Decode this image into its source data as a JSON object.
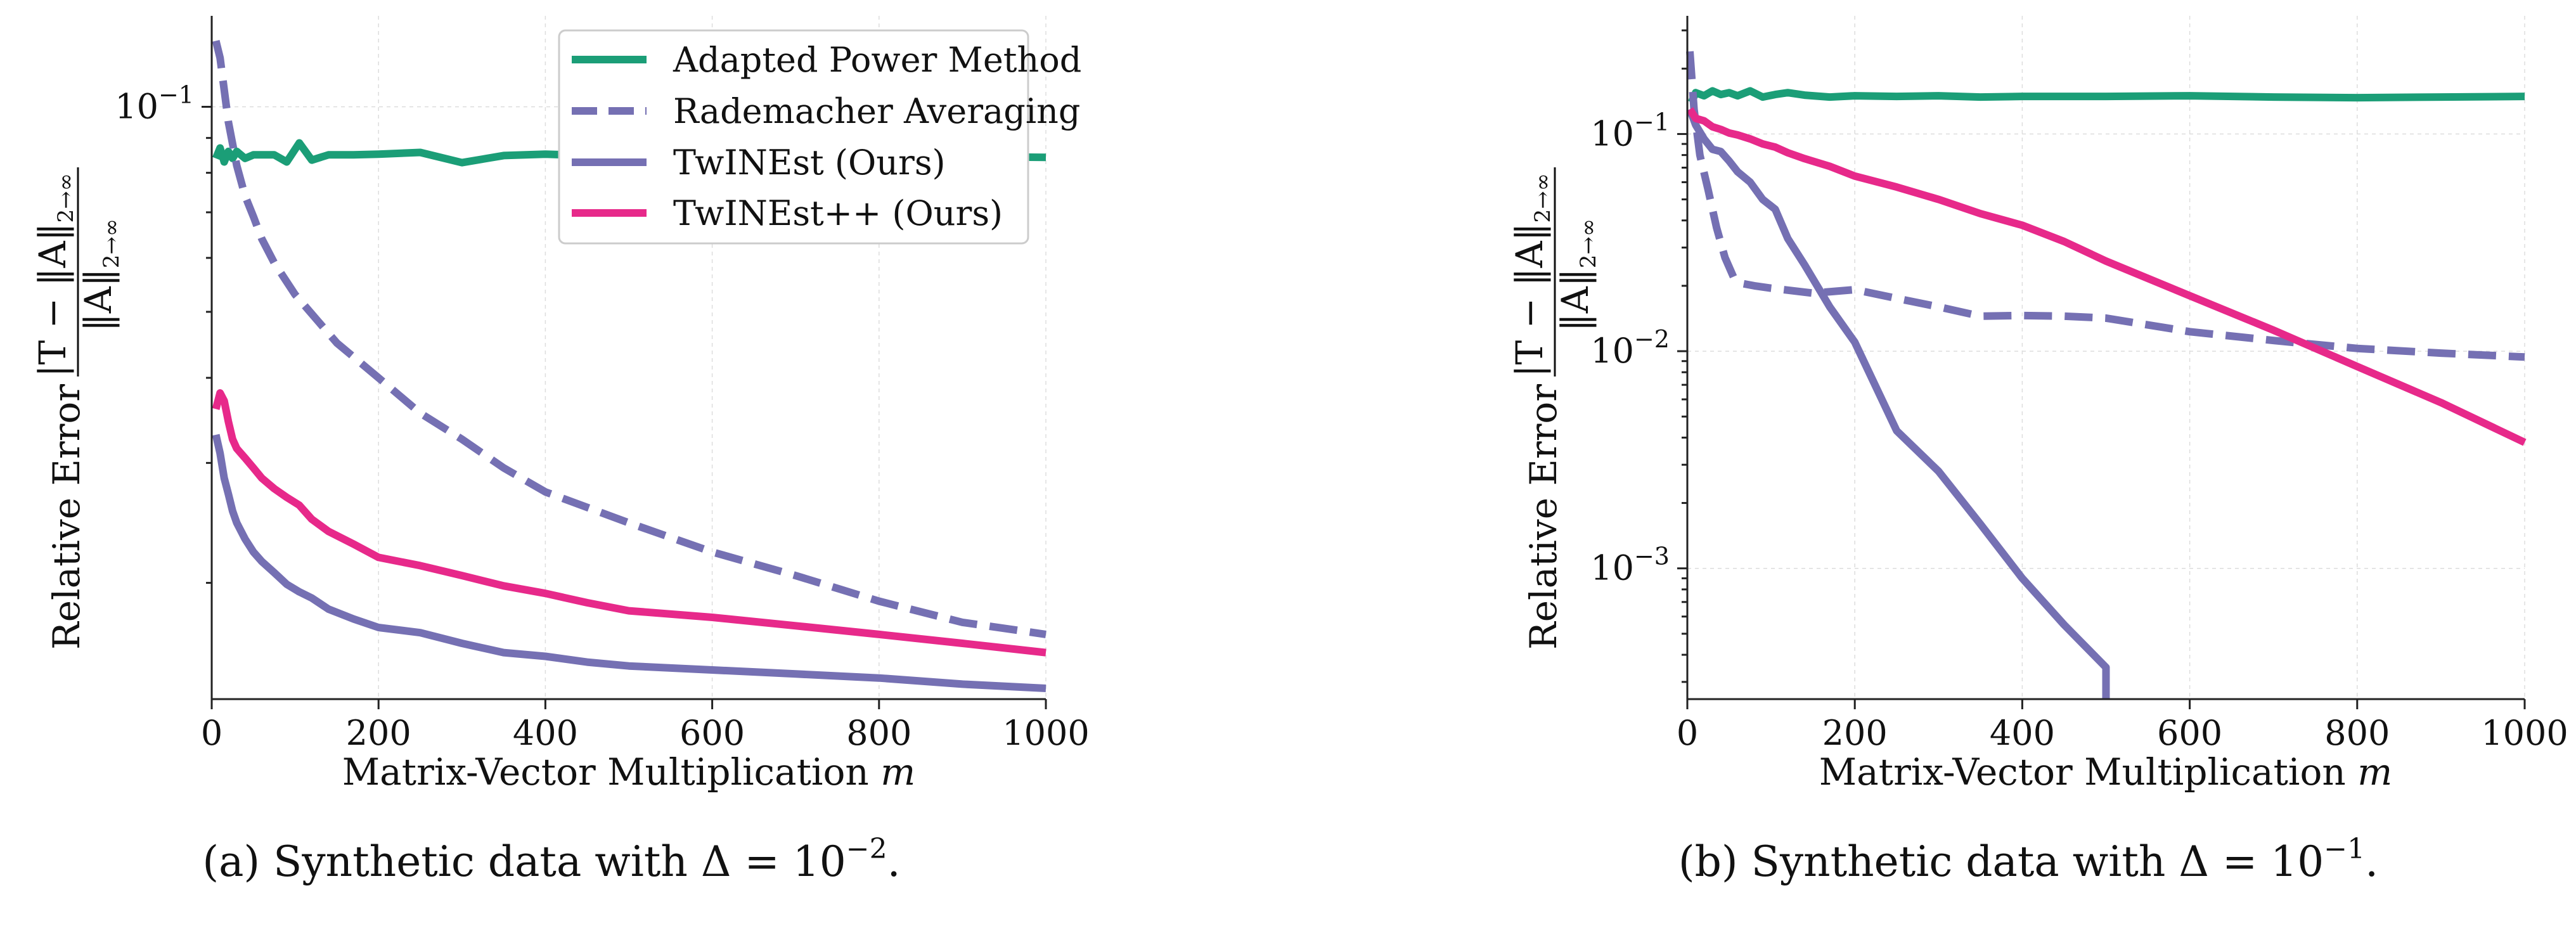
{
  "colors": {
    "adapted": "#1b9e77",
    "rademacher": "#7570b3",
    "twinest": "#7570b3",
    "twinestpp": "#e7298a"
  },
  "chart_data": [
    {
      "type": "line",
      "panel": "a",
      "yscale": "log",
      "xlim": [
        0,
        1000
      ],
      "ylim": [
        0.0135,
        0.136
      ],
      "xticks": [
        0,
        200,
        400,
        600,
        800,
        1000
      ],
      "xtick_labels": [
        "0",
        "200",
        "400",
        "600",
        "800",
        "1000"
      ],
      "yticks": [
        0.1
      ],
      "ytick_labels": [
        "10^{-1}"
      ],
      "ytick_base": "10",
      "ytick_exponents": [
        "−1"
      ],
      "xlabel": "Matrix-Vector Multiplication",
      "xlabel_var": "m",
      "ylabel_prefix": "Relative Error",
      "ylabel_numerator": "|T − ‖A‖",
      "ylabel_denominator": "‖A‖",
      "ylabel_subscript": "2→∞",
      "caption_prefix": "(a) Synthetic data with Δ = 10",
      "caption_exponent": "−2",
      "caption_suffix": ".",
      "legend_position": "top-right",
      "legend": [
        "Adapted Power Method",
        "Rademacher Averaging",
        "TwINEst (Ours)",
        "TwINEst++ (Ours)"
      ],
      "series": [
        {
          "name": "Adapted Power Method",
          "key": "adapted",
          "dash": "solid",
          "x": [
            5,
            10,
            15,
            20,
            25,
            30,
            40,
            50,
            60,
            75,
            90,
            105,
            120,
            140,
            170,
            200,
            250,
            300,
            350,
            400,
            450,
            500,
            600,
            700,
            800,
            900,
            1000
          ],
          "y": [
            0.084,
            0.087,
            0.083,
            0.086,
            0.084,
            0.086,
            0.084,
            0.085,
            0.085,
            0.085,
            0.083,
            0.0885,
            0.0835,
            0.085,
            0.085,
            0.0852,
            0.0857,
            0.0828,
            0.0848,
            0.0852,
            0.0848,
            0.0845,
            0.0843,
            0.0855,
            0.0848,
            0.0845,
            0.0843
          ]
        },
        {
          "name": "Rademacher Averaging",
          "key": "rademacher",
          "dash": "dashed",
          "x": [
            5,
            10,
            20,
            30,
            40,
            50,
            60,
            75,
            100,
            150,
            200,
            250,
            300,
            350,
            400,
            500,
            600,
            700,
            800,
            900,
            1000
          ],
          "y": [
            0.125,
            0.118,
            0.095,
            0.082,
            0.074,
            0.069,
            0.064,
            0.059,
            0.053,
            0.045,
            0.04,
            0.0355,
            0.0325,
            0.0295,
            0.0272,
            0.0245,
            0.0222,
            0.0205,
            0.0188,
            0.0175,
            0.0168
          ]
        },
        {
          "name": "TwINEst (Ours)",
          "key": "twinest",
          "dash": "solid",
          "x": [
            5,
            10,
            15,
            20,
            25,
            30,
            40,
            50,
            60,
            75,
            90,
            105,
            120,
            140,
            170,
            200,
            250,
            300,
            350,
            400,
            450,
            500,
            600,
            700,
            800,
            900,
            1000
          ],
          "y": [
            0.033,
            0.031,
            0.0285,
            0.027,
            0.0255,
            0.0245,
            0.0232,
            0.0222,
            0.0215,
            0.0207,
            0.0199,
            0.0194,
            0.019,
            0.0183,
            0.0177,
            0.0172,
            0.0169,
            0.0163,
            0.0158,
            0.0156,
            0.0153,
            0.0151,
            0.0149,
            0.0147,
            0.0145,
            0.0142,
            0.014
          ]
        },
        {
          "name": "TwINEst++ (Ours)",
          "key": "twinestpp",
          "dash": "solid",
          "x": [
            5,
            10,
            15,
            20,
            25,
            30,
            40,
            50,
            60,
            75,
            90,
            105,
            120,
            140,
            170,
            200,
            250,
            300,
            350,
            400,
            450,
            500,
            600,
            700,
            800,
            900,
            1000
          ],
          "y": [
            0.036,
            0.038,
            0.037,
            0.0345,
            0.0325,
            0.0315,
            0.0305,
            0.0295,
            0.0285,
            0.0275,
            0.0267,
            0.026,
            0.0248,
            0.0238,
            0.0228,
            0.0218,
            0.0212,
            0.0205,
            0.0198,
            0.0193,
            0.0187,
            0.0182,
            0.0178,
            0.0173,
            0.0168,
            0.0163,
            0.0158
          ]
        }
      ]
    },
    {
      "type": "line",
      "panel": "b",
      "yscale": "log",
      "xlim": [
        0,
        1000
      ],
      "ylim": [
        0.00025,
        0.35
      ],
      "xticks": [
        0,
        200,
        400,
        600,
        800,
        1000
      ],
      "xtick_labels": [
        "0",
        "200",
        "400",
        "600",
        "800",
        "1000"
      ],
      "yticks": [
        0.1,
        0.01,
        0.001
      ],
      "ytick_labels": [
        "10^{-1}",
        "10^{-2}",
        "10^{-3}"
      ],
      "ytick_base": "10",
      "ytick_exponents": [
        "−1",
        "−2",
        "−3"
      ],
      "xlabel": "Matrix-Vector Multiplication",
      "xlabel_var": "m",
      "ylabel_prefix": "Relative Error",
      "ylabel_numerator": "|T − ‖A‖",
      "ylabel_denominator": "‖A‖",
      "ylabel_subscript": "2→∞",
      "caption_prefix": "(b) Synthetic data with Δ = 10",
      "caption_exponent": "−1",
      "caption_suffix": ".",
      "series": [
        {
          "name": "Adapted Power Method",
          "key": "adapted",
          "dash": "solid",
          "x": [
            5,
            10,
            20,
            30,
            40,
            50,
            60,
            75,
            90,
            105,
            120,
            140,
            170,
            200,
            250,
            300,
            350,
            400,
            450,
            500,
            600,
            700,
            800,
            900,
            1000
          ],
          "y": [
            0.14,
            0.155,
            0.15,
            0.158,
            0.152,
            0.155,
            0.15,
            0.158,
            0.148,
            0.152,
            0.155,
            0.151,
            0.148,
            0.15,
            0.149,
            0.15,
            0.148,
            0.149,
            0.149,
            0.149,
            0.15,
            0.148,
            0.147,
            0.148,
            0.149
          ]
        },
        {
          "name": "Rademacher Averaging",
          "key": "rademacher",
          "dash": "dashed",
          "x": [
            3,
            8,
            15,
            25,
            35,
            45,
            55,
            65,
            80,
            100,
            150,
            200,
            250,
            300,
            350,
            400,
            450,
            500,
            600,
            700,
            800,
            900,
            1000
          ],
          "y": [
            0.24,
            0.13,
            0.08,
            0.055,
            0.037,
            0.027,
            0.022,
            0.0205,
            0.02,
            0.0195,
            0.0185,
            0.0192,
            0.0175,
            0.016,
            0.0145,
            0.0146,
            0.0145,
            0.0142,
            0.0123,
            0.0112,
            0.0103,
            0.0098,
            0.0094
          ]
        },
        {
          "name": "TwINEst (Ours)",
          "key": "twinest",
          "dash": "solid",
          "x": [
            3,
            10,
            20,
            30,
            40,
            50,
            60,
            75,
            90,
            105,
            120,
            140,
            170,
            200,
            250,
            300,
            350,
            400,
            450,
            500,
            500
          ],
          "y": [
            0.13,
            0.11,
            0.095,
            0.085,
            0.083,
            0.075,
            0.067,
            0.06,
            0.05,
            0.045,
            0.033,
            0.025,
            0.016,
            0.011,
            0.0043,
            0.0028,
            0.0016,
            0.0009,
            0.00055,
            0.00035,
            0.00025
          ]
        },
        {
          "name": "TwINEst++ (Ours)",
          "key": "twinestpp",
          "dash": "solid",
          "x": [
            3,
            10,
            20,
            30,
            40,
            50,
            60,
            75,
            90,
            105,
            120,
            140,
            170,
            200,
            250,
            300,
            350,
            400,
            450,
            500,
            600,
            700,
            800,
            900,
            1000
          ],
          "y": [
            0.13,
            0.118,
            0.115,
            0.108,
            0.105,
            0.101,
            0.099,
            0.095,
            0.09,
            0.087,
            0.082,
            0.077,
            0.071,
            0.064,
            0.057,
            0.05,
            0.043,
            0.038,
            0.032,
            0.026,
            0.018,
            0.0125,
            0.0085,
            0.0058,
            0.0038
          ]
        }
      ]
    }
  ]
}
